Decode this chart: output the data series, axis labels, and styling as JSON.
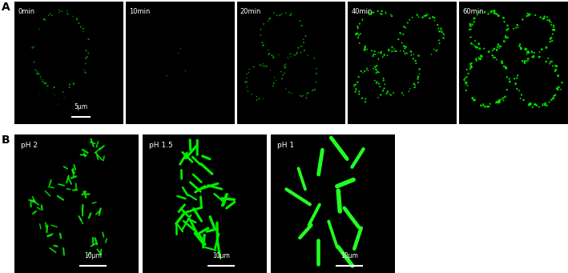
{
  "figure_width": 7.09,
  "figure_height": 3.41,
  "dpi": 100,
  "bg_color": "#000000",
  "green_color": "#00ee00",
  "dim_green": "#009900",
  "bright_green": "#22ff22",
  "row_A_labels": [
    "0min",
    "10min",
    "20min",
    "40min",
    "60min"
  ],
  "row_B_labels": [
    "pH 2",
    "pH 1.5",
    "pH 1"
  ],
  "scale_bar_A": "5μm",
  "scale_bar_B": "10μm",
  "outer_label_A": "A",
  "outer_label_B": "B"
}
